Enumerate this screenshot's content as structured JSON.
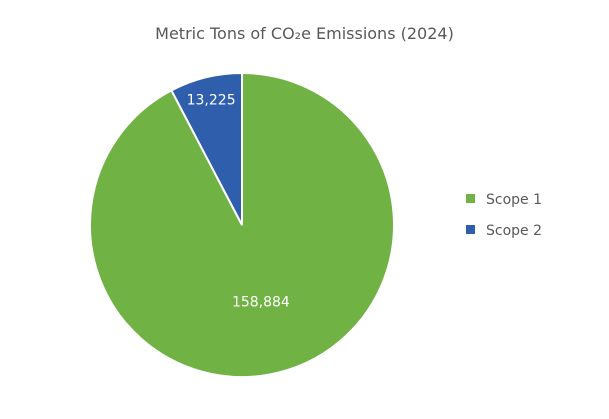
{
  "chart_data": {
    "type": "pie",
    "title": "Metric Tons of CO₂e Emissions (2024)",
    "categories": [
      "Scope 1",
      "Scope 2"
    ],
    "values": [
      158884,
      13225
    ],
    "labels": [
      "158,884",
      "13,225"
    ],
    "colors": [
      "#70B244",
      "#2E5EAC"
    ],
    "legend": {
      "position": "right",
      "entries": [
        "Scope 1",
        "Scope 2"
      ]
    }
  }
}
